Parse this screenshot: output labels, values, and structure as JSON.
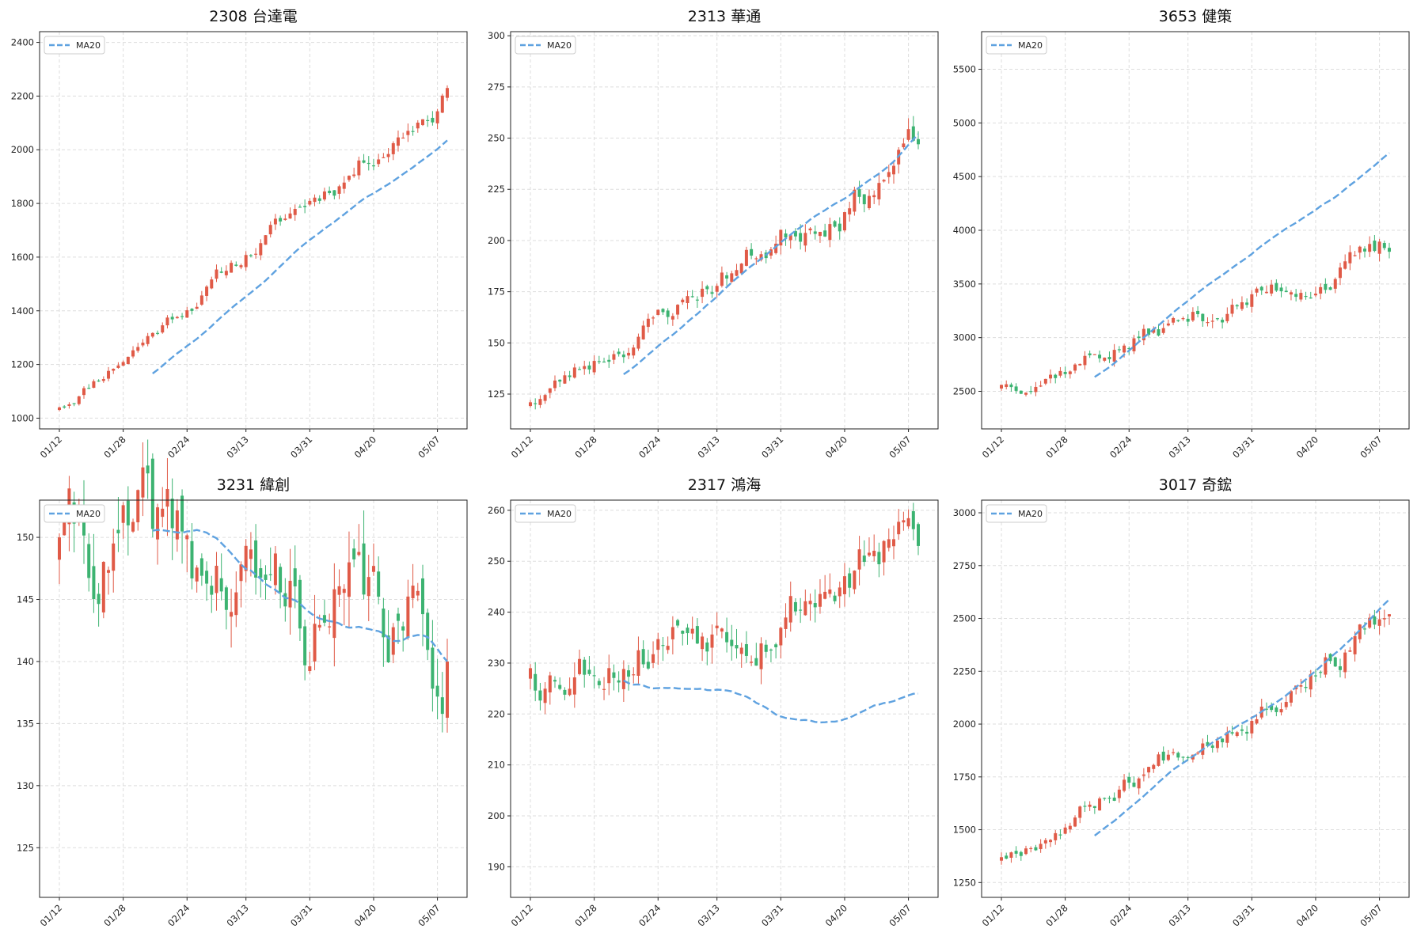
{
  "chart_data": [
    {
      "type": "candlestick",
      "title": "2308 台達電",
      "legend": {
        "entries": [
          "MA20"
        ],
        "placement": "top-left"
      },
      "ma_color": "#5fa2e0",
      "up_color": "#e05a47",
      "down_color": "#3cb371",
      "grid": true,
      "xticks": [
        "01/12",
        "01/28",
        "02/24",
        "03/13",
        "03/31",
        "04/20",
        "05/07"
      ],
      "ylim": [
        960,
        2440
      ],
      "yticks": [
        1000,
        1200,
        1400,
        1600,
        1800,
        2000,
        2200,
        2400
      ],
      "start_price": 1040,
      "end_price": 2230,
      "ma_end": 2035,
      "ma_start_index": 20,
      "volatility": 0.015,
      "seed": 11
    },
    {
      "type": "candlestick",
      "title": "2313 華通",
      "legend": {
        "entries": [
          "MA20"
        ],
        "placement": "top-left"
      },
      "ma_color": "#5fa2e0",
      "up_color": "#e05a47",
      "down_color": "#3cb371",
      "grid": true,
      "xticks": [
        "01/12",
        "01/28",
        "02/24",
        "03/13",
        "03/31",
        "04/20",
        "05/07"
      ],
      "ylim": [
        108,
        302
      ],
      "yticks": [
        125,
        150,
        175,
        200,
        225,
        250,
        275,
        300
      ],
      "start_price": 121,
      "end_price": 247,
      "ma_end": 252,
      "ma_start_index": 20,
      "volatility": 0.025,
      "seed": 23
    },
    {
      "type": "candlestick",
      "title": "3653 健策",
      "legend": {
        "entries": [
          "MA20"
        ],
        "placement": "top-left"
      },
      "ma_color": "#5fa2e0",
      "up_color": "#e05a47",
      "down_color": "#3cb371",
      "grid": true,
      "xticks": [
        "01/12",
        "01/28",
        "02/24",
        "03/13",
        "03/31",
        "04/20",
        "05/07"
      ],
      "ylim": [
        2150,
        5850
      ],
      "yticks": [
        2500,
        3000,
        3500,
        4000,
        4500,
        5000,
        5500
      ],
      "start_price": 2560,
      "end_price": 3800,
      "ma_end": 4720,
      "ma_start_index": 20,
      "volatility": 0.022,
      "seed": 37
    },
    {
      "type": "candlestick",
      "title": "3231 緯創",
      "legend": {
        "entries": [
          "MA20"
        ],
        "placement": "top-left"
      },
      "ma_color": "#5fa2e0",
      "up_color": "#e05a47",
      "down_color": "#3cb371",
      "grid": true,
      "xticks": [
        "01/12",
        "01/28",
        "02/24",
        "03/13",
        "03/31",
        "04/20",
        "05/07"
      ],
      "ylim": [
        121,
        153
      ],
      "yticks": [
        125,
        130,
        135,
        140,
        145,
        150
      ],
      "start_price": 150,
      "end_price": 140,
      "ma_end": 140,
      "ma_start_index": 20,
      "volatility": 0.02,
      "seed": 41
    },
    {
      "type": "candlestick",
      "title": "2317 鴻海",
      "legend": {
        "entries": [
          "MA20"
        ],
        "placement": "top-left"
      },
      "ma_color": "#5fa2e0",
      "up_color": "#e05a47",
      "down_color": "#3cb371",
      "grid": true,
      "xticks": [
        "01/12",
        "01/28",
        "02/24",
        "03/13",
        "03/31",
        "04/20",
        "05/07"
      ],
      "ylim": [
        184,
        262
      ],
      "yticks": [
        190,
        200,
        210,
        220,
        230,
        240,
        250,
        260
      ],
      "start_price": 229,
      "end_price": 253,
      "ma_end": 224,
      "ma_start_index": 20,
      "volatility": 0.015,
      "seed": 53
    },
    {
      "type": "candlestick",
      "title": "3017 奇鋐",
      "legend": {
        "entries": [
          "MA20"
        ],
        "placement": "top-left"
      },
      "ma_color": "#5fa2e0",
      "up_color": "#e05a47",
      "down_color": "#3cb371",
      "grid": true,
      "xticks": [
        "01/12",
        "01/28",
        "02/24",
        "03/13",
        "03/31",
        "04/20",
        "05/07"
      ],
      "ylim": [
        1180,
        3060
      ],
      "yticks": [
        1250,
        1500,
        1750,
        2000,
        2250,
        2500,
        2750,
        3000
      ],
      "start_price": 1370,
      "end_price": 2520,
      "ma_end": 2590,
      "ma_start_index": 20,
      "volatility": 0.02,
      "seed": 67
    }
  ]
}
